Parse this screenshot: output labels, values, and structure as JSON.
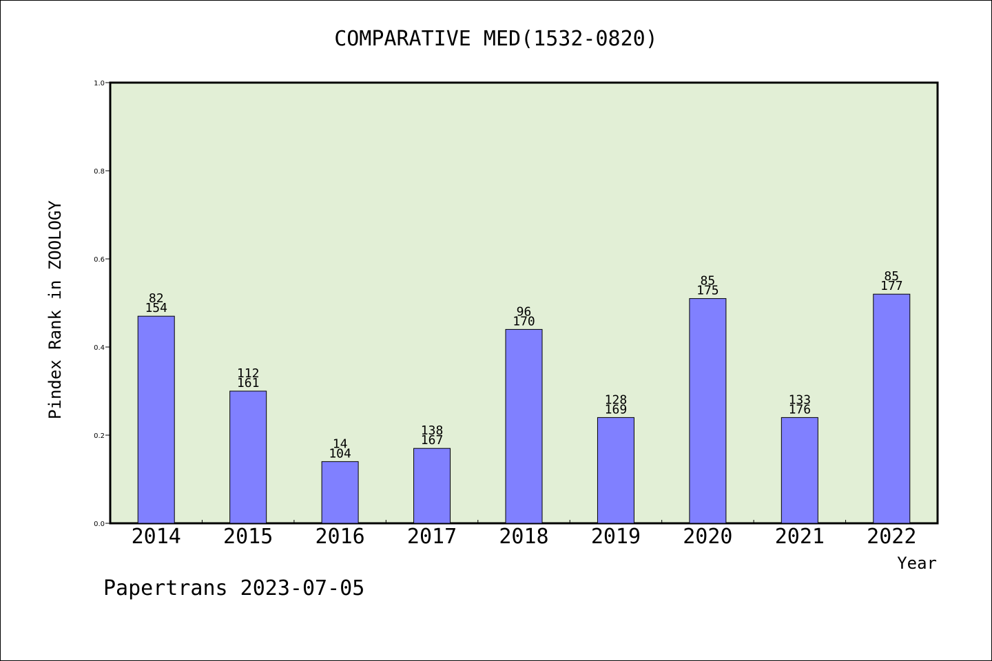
{
  "chart_data": {
    "type": "bar",
    "title": "COMPARATIVE MED(1532-0820)",
    "xlabel": "Year",
    "ylabel": "Pindex Rank in ZOOLOGY",
    "ylim": [
      0,
      1.0
    ],
    "yticks": [
      "0.0",
      "0.2",
      "0.4",
      "0.6",
      "0.8",
      "1.0"
    ],
    "grid": false,
    "categories": [
      "2014",
      "2015",
      "2016",
      "2017",
      "2018",
      "2019",
      "2020",
      "2021",
      "2022"
    ],
    "values": [
      0.47,
      0.3,
      0.14,
      0.17,
      0.44,
      0.24,
      0.51,
      0.24,
      0.52
    ],
    "label_top": [
      "82",
      "112",
      "14",
      "138",
      "96",
      "128",
      "85",
      "133",
      "85"
    ],
    "label_bottom": [
      "154",
      "161",
      "104",
      "167",
      "170",
      "169",
      "175",
      "176",
      "177"
    ],
    "colors": {
      "bar": "#8080ff",
      "plot_background": "#e2efd6",
      "axis": "#000000"
    }
  },
  "footer": {
    "text": "Papertrans 2023-07-05"
  }
}
